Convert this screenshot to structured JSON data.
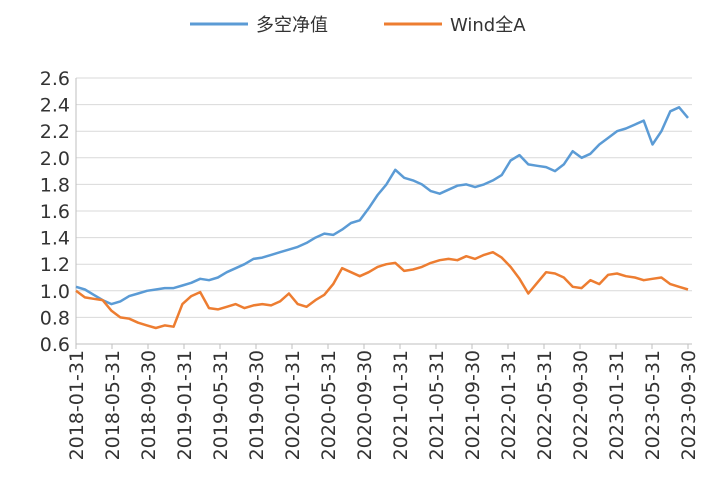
{
  "chart_data": {
    "type": "line",
    "title": "",
    "xlabel": "",
    "ylabel": "",
    "ylim": [
      0.6,
      2.6
    ],
    "y_ticks": [
      0.6,
      0.8,
      1.0,
      1.2,
      1.4,
      1.6,
      1.8,
      2.0,
      2.2,
      2.4,
      2.6
    ],
    "y_tick_labels": [
      "0.6",
      "0.8",
      "1.0",
      "1.2",
      "1.4",
      "1.6",
      "1.8",
      "2.0",
      "2.2",
      "2.4",
      "2.6"
    ],
    "x_tick_labels": [
      "2018-01-31",
      "2018-05-31",
      "2018-09-30",
      "2019-01-31",
      "2019-05-31",
      "2019-09-30",
      "2020-01-31",
      "2020-05-31",
      "2020-09-30",
      "2021-01-31",
      "2021-05-31",
      "2021-09-30",
      "2022-01-31",
      "2022-05-31",
      "2022-09-30",
      "2023-01-31",
      "2023-05-31",
      "2023-09-30"
    ],
    "grid": "horizontal",
    "legend": "top",
    "series": [
      {
        "name": "多空净值",
        "color": "#5B9BD5",
        "x": [
          "2018-01-31",
          "2018-02-28",
          "2018-03-31",
          "2018-04-30",
          "2018-05-31",
          "2018-06-30",
          "2018-07-31",
          "2018-08-31",
          "2018-09-30",
          "2018-10-31",
          "2018-11-30",
          "2018-12-31",
          "2019-01-31",
          "2019-02-28",
          "2019-03-31",
          "2019-04-30",
          "2019-05-31",
          "2019-06-30",
          "2019-07-31",
          "2019-08-31",
          "2019-09-30",
          "2019-10-31",
          "2019-11-30",
          "2019-12-31",
          "2020-01-31",
          "2020-02-29",
          "2020-03-31",
          "2020-04-30",
          "2020-05-31",
          "2020-06-30",
          "2020-07-31",
          "2020-08-31",
          "2020-09-30",
          "2020-10-31",
          "2020-11-30",
          "2020-12-31",
          "2021-01-31",
          "2021-02-28",
          "2021-03-31",
          "2021-04-30",
          "2021-05-31",
          "2021-06-30",
          "2021-07-31",
          "2021-08-31",
          "2021-09-30",
          "2021-10-31",
          "2021-11-30",
          "2021-12-31",
          "2022-01-31",
          "2022-02-28",
          "2022-03-31",
          "2022-04-30",
          "2022-05-31",
          "2022-06-30",
          "2022-07-31",
          "2022-08-31",
          "2022-09-30",
          "2022-10-31",
          "2022-11-30",
          "2022-12-31",
          "2023-01-31",
          "2023-02-28",
          "2023-03-31",
          "2023-04-30",
          "2023-05-31",
          "2023-06-30",
          "2023-07-31",
          "2023-08-31",
          "2023-09-30",
          "2023-10-31"
        ],
        "values": [
          1.03,
          1.01,
          0.97,
          0.93,
          0.9,
          0.92,
          0.96,
          0.98,
          1.0,
          1.01,
          1.02,
          1.02,
          1.04,
          1.06,
          1.09,
          1.08,
          1.1,
          1.14,
          1.17,
          1.2,
          1.24,
          1.25,
          1.27,
          1.29,
          1.31,
          1.33,
          1.36,
          1.4,
          1.43,
          1.42,
          1.46,
          1.51,
          1.53,
          1.62,
          1.72,
          1.8,
          1.91,
          1.85,
          1.83,
          1.8,
          1.75,
          1.73,
          1.76,
          1.79,
          1.8,
          1.78,
          1.8,
          1.83,
          1.87,
          1.98,
          2.02,
          1.95,
          1.94,
          1.93,
          1.9,
          1.95,
          2.05,
          2.0,
          2.03,
          2.1,
          2.15,
          2.2,
          2.22,
          2.25,
          2.28,
          2.1,
          2.2,
          2.35,
          2.38,
          2.3
        ]
      },
      {
        "name": "Wind全A",
        "color": "#ED7D31",
        "x": [
          "2018-01-31",
          "2018-02-28",
          "2018-03-31",
          "2018-04-30",
          "2018-05-31",
          "2018-06-30",
          "2018-07-31",
          "2018-08-31",
          "2018-09-30",
          "2018-10-31",
          "2018-11-30",
          "2018-12-31",
          "2019-01-31",
          "2019-02-28",
          "2019-03-31",
          "2019-04-30",
          "2019-05-31",
          "2019-06-30",
          "2019-07-31",
          "2019-08-31",
          "2019-09-30",
          "2019-10-31",
          "2019-11-30",
          "2019-12-31",
          "2020-01-31",
          "2020-02-29",
          "2020-03-31",
          "2020-04-30",
          "2020-05-31",
          "2020-06-30",
          "2020-07-31",
          "2020-08-31",
          "2020-09-30",
          "2020-10-31",
          "2020-11-30",
          "2020-12-31",
          "2021-01-31",
          "2021-02-28",
          "2021-03-31",
          "2021-04-30",
          "2021-05-31",
          "2021-06-30",
          "2021-07-31",
          "2021-08-31",
          "2021-09-30",
          "2021-10-31",
          "2021-11-30",
          "2021-12-31",
          "2022-01-31",
          "2022-02-28",
          "2022-03-31",
          "2022-04-30",
          "2022-05-31",
          "2022-06-30",
          "2022-07-31",
          "2022-08-31",
          "2022-09-30",
          "2022-10-31",
          "2022-11-30",
          "2022-12-31",
          "2023-01-31",
          "2023-02-28",
          "2023-03-31",
          "2023-04-30",
          "2023-05-31",
          "2023-06-30",
          "2023-07-31",
          "2023-08-31",
          "2023-09-30",
          "2023-10-31"
        ],
        "values": [
          1.0,
          0.95,
          0.94,
          0.93,
          0.85,
          0.8,
          0.79,
          0.76,
          0.74,
          0.72,
          0.74,
          0.73,
          0.9,
          0.96,
          0.99,
          0.87,
          0.86,
          0.88,
          0.9,
          0.87,
          0.89,
          0.9,
          0.89,
          0.92,
          0.98,
          0.9,
          0.88,
          0.93,
          0.97,
          1.05,
          1.17,
          1.14,
          1.11,
          1.14,
          1.18,
          1.2,
          1.21,
          1.15,
          1.16,
          1.18,
          1.21,
          1.23,
          1.24,
          1.23,
          1.26,
          1.24,
          1.27,
          1.29,
          1.25,
          1.18,
          1.09,
          0.98,
          1.06,
          1.14,
          1.13,
          1.1,
          1.03,
          1.02,
          1.08,
          1.05,
          1.12,
          1.13,
          1.11,
          1.1,
          1.08,
          1.09,
          1.1,
          1.05,
          1.03,
          1.01
        ]
      }
    ]
  }
}
